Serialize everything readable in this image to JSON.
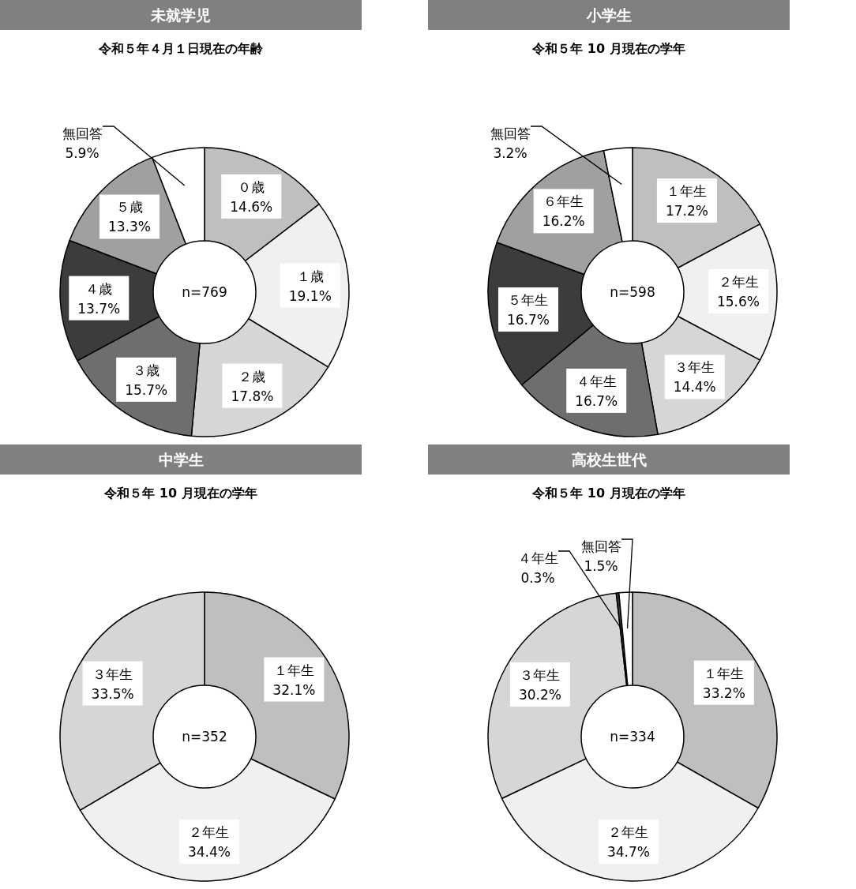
{
  "chart_data": [
    {
      "type": "donut",
      "title": "未就学児",
      "subtitle": "令和５年４月１日現在の年齢",
      "annotations": [
        "n=769"
      ],
      "categories": [
        "０歳",
        "１歳",
        "２歳",
        "３歳",
        "４歳",
        "５歳",
        "無回答"
      ],
      "values": [
        14.6,
        19.1,
        17.8,
        15.7,
        13.7,
        13.3,
        5.9
      ],
      "value_labels": [
        "14.6%",
        "19.1%",
        "17.8%",
        "15.7%",
        "13.7%",
        "13.3%",
        "5.9%"
      ],
      "colors": [
        "#bfbfbf",
        "#f0f0f0",
        "#d6d6d6",
        "#6e6e6e",
        "#3c3c3c",
        "#a0a0a0",
        "#ffffff"
      ]
    },
    {
      "type": "donut",
      "title": "小学生",
      "subtitle": "令和５年 10 月現在の学年",
      "annotations": [
        "n=598"
      ],
      "categories": [
        "１年生",
        "２年生",
        "３年生",
        "４年生",
        "５年生",
        "６年生",
        "無回答"
      ],
      "values": [
        17.2,
        15.6,
        14.4,
        16.7,
        16.7,
        16.2,
        3.2
      ],
      "value_labels": [
        "17.2%",
        "15.6%",
        "14.4%",
        "16.7%",
        "16.7%",
        "16.2%",
        "3.2%"
      ],
      "colors": [
        "#bfbfbf",
        "#f0f0f0",
        "#d6d6d6",
        "#6e6e6e",
        "#3c3c3c",
        "#a0a0a0",
        "#ffffff"
      ]
    },
    {
      "type": "donut",
      "title": "中学生",
      "subtitle": "令和５年 10 月現在の学年",
      "annotations": [
        "n=352"
      ],
      "categories": [
        "１年生",
        "２年生",
        "３年生"
      ],
      "values": [
        32.1,
        34.4,
        33.5
      ],
      "value_labels": [
        "32.1%",
        "34.4%",
        "33.5%"
      ],
      "colors": [
        "#bfbfbf",
        "#f0f0f0",
        "#d6d6d6"
      ]
    },
    {
      "type": "donut",
      "title": "高校生世代",
      "subtitle": "令和５年 10 月現在の学年",
      "annotations": [
        "n=334"
      ],
      "categories": [
        "１年生",
        "２年生",
        "３年生",
        "４年生",
        "無回答"
      ],
      "values": [
        33.2,
        34.7,
        30.2,
        0.3,
        1.5
      ],
      "value_labels": [
        "33.2%",
        "34.7%",
        "30.2%",
        "0.3%",
        "1.5%"
      ],
      "colors": [
        "#bfbfbf",
        "#f0f0f0",
        "#d6d6d6",
        "#3c3c3c",
        "#ffffff"
      ]
    }
  ]
}
